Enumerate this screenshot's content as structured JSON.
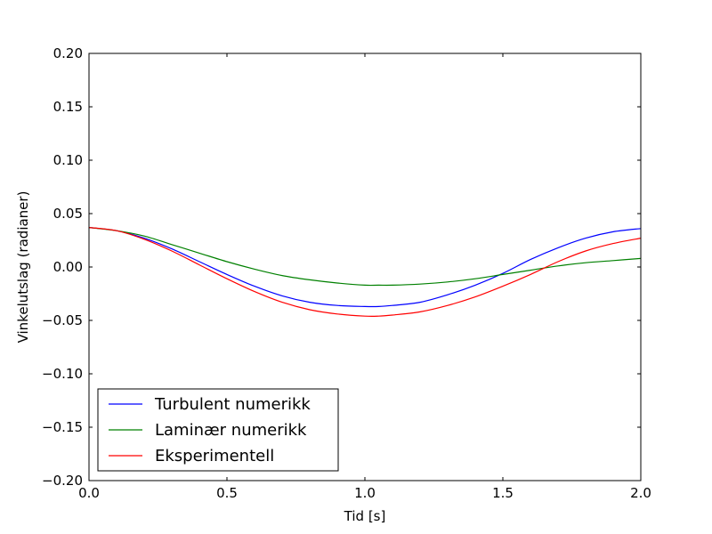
{
  "chart_data": {
    "type": "line",
    "xlabel": "Tid [s]",
    "ylabel": "Vinkelutslag (radianer)",
    "xlim": [
      0.0,
      2.0
    ],
    "ylim": [
      -0.2,
      0.2
    ],
    "x_ticks": [
      "0.0",
      "0.5",
      "1.0",
      "1.5",
      "2.0"
    ],
    "y_ticks": [
      "−0.20",
      "−0.15",
      "−0.10",
      "−0.05",
      "0.00",
      "0.05",
      "0.10",
      "0.15",
      "0.20"
    ],
    "grid": false,
    "legend_position": "lower-left",
    "x": [
      0.0,
      0.1,
      0.2,
      0.3,
      0.4,
      0.5,
      0.6,
      0.7,
      0.8,
      0.9,
      1.0,
      1.05,
      1.1,
      1.2,
      1.3,
      1.4,
      1.5,
      1.6,
      1.7,
      1.8,
      1.9,
      2.0
    ],
    "series": [
      {
        "name": "Turbulent numerikk",
        "color": "#0000ff",
        "values": [
          0.037,
          0.034,
          0.027,
          0.017,
          0.005,
          -0.007,
          -0.018,
          -0.027,
          -0.033,
          -0.036,
          -0.037,
          -0.037,
          -0.036,
          -0.033,
          -0.026,
          -0.017,
          -0.006,
          0.007,
          0.018,
          0.027,
          0.033,
          0.036
        ]
      },
      {
        "name": "Laminær numerikk",
        "color": "#008000",
        "values": [
          0.037,
          0.034,
          0.029,
          0.021,
          0.013,
          0.005,
          -0.002,
          -0.008,
          -0.012,
          -0.015,
          -0.017,
          -0.017,
          -0.017,
          -0.016,
          -0.014,
          -0.011,
          -0.007,
          -0.003,
          0.001,
          0.004,
          0.006,
          0.008
        ]
      },
      {
        "name": "Eksperimentell",
        "color": "#ff0000",
        "values": [
          0.037,
          0.034,
          0.026,
          0.015,
          0.002,
          -0.011,
          -0.023,
          -0.033,
          -0.04,
          -0.044,
          -0.046,
          -0.046,
          -0.045,
          -0.042,
          -0.036,
          -0.028,
          -0.018,
          -0.007,
          0.005,
          0.015,
          0.022,
          0.027
        ]
      }
    ]
  }
}
